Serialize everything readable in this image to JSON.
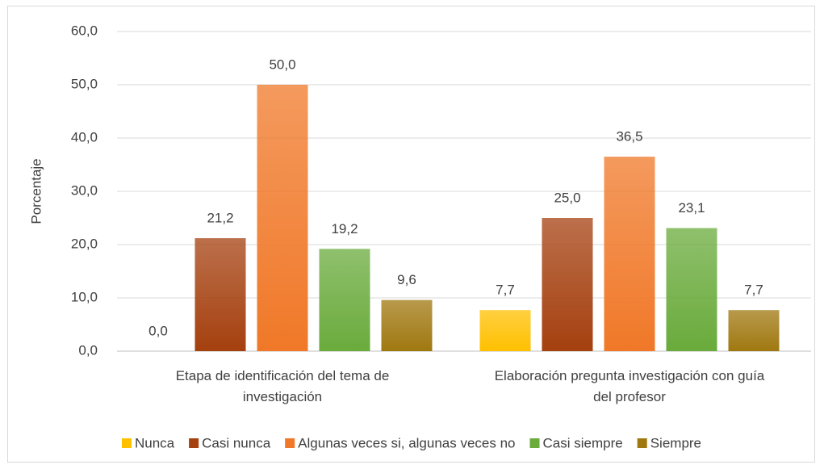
{
  "chart_data": {
    "type": "bar",
    "ylabel": "Porcentaje",
    "categories": [
      "Etapa de identificación del tema de investigación",
      "Elaboración pregunta investigación con guía del profesor"
    ],
    "series": [
      {
        "name": "Nunca",
        "color": "#ffc000",
        "values": [
          0.0,
          7.7
        ],
        "value_labels": [
          "0,0",
          "7,7"
        ]
      },
      {
        "name": "Casi nunca",
        "color": "#a5400f",
        "values": [
          21.2,
          25.0
        ],
        "value_labels": [
          "21,2",
          "25,0"
        ]
      },
      {
        "name": "Algunas veces si, algunas veces no",
        "color": "#f07828",
        "values": [
          50.0,
          36.5
        ],
        "value_labels": [
          "50,0",
          "36,5"
        ]
      },
      {
        "name": "Casi siempre",
        "color": "#6aab3c",
        "values": [
          19.2,
          23.1
        ],
        "value_labels": [
          "19,2",
          "23,1"
        ]
      },
      {
        "name": "Siempre",
        "color": "#a07810",
        "values": [
          9.6,
          7.7
        ],
        "value_labels": [
          "9,6",
          "7,7"
        ]
      }
    ],
    "ylim": [
      0,
      60
    ],
    "yticks": [
      {
        "value": 0,
        "label": "0,0"
      },
      {
        "value": 10,
        "label": "10,0"
      },
      {
        "value": 20,
        "label": "20,0"
      },
      {
        "value": 30,
        "label": "30,0"
      },
      {
        "value": 40,
        "label": "40,0"
      },
      {
        "value": 50,
        "label": "50,0"
      },
      {
        "value": 60,
        "label": "60,0"
      }
    ],
    "grid": true,
    "legend": "bottom"
  }
}
